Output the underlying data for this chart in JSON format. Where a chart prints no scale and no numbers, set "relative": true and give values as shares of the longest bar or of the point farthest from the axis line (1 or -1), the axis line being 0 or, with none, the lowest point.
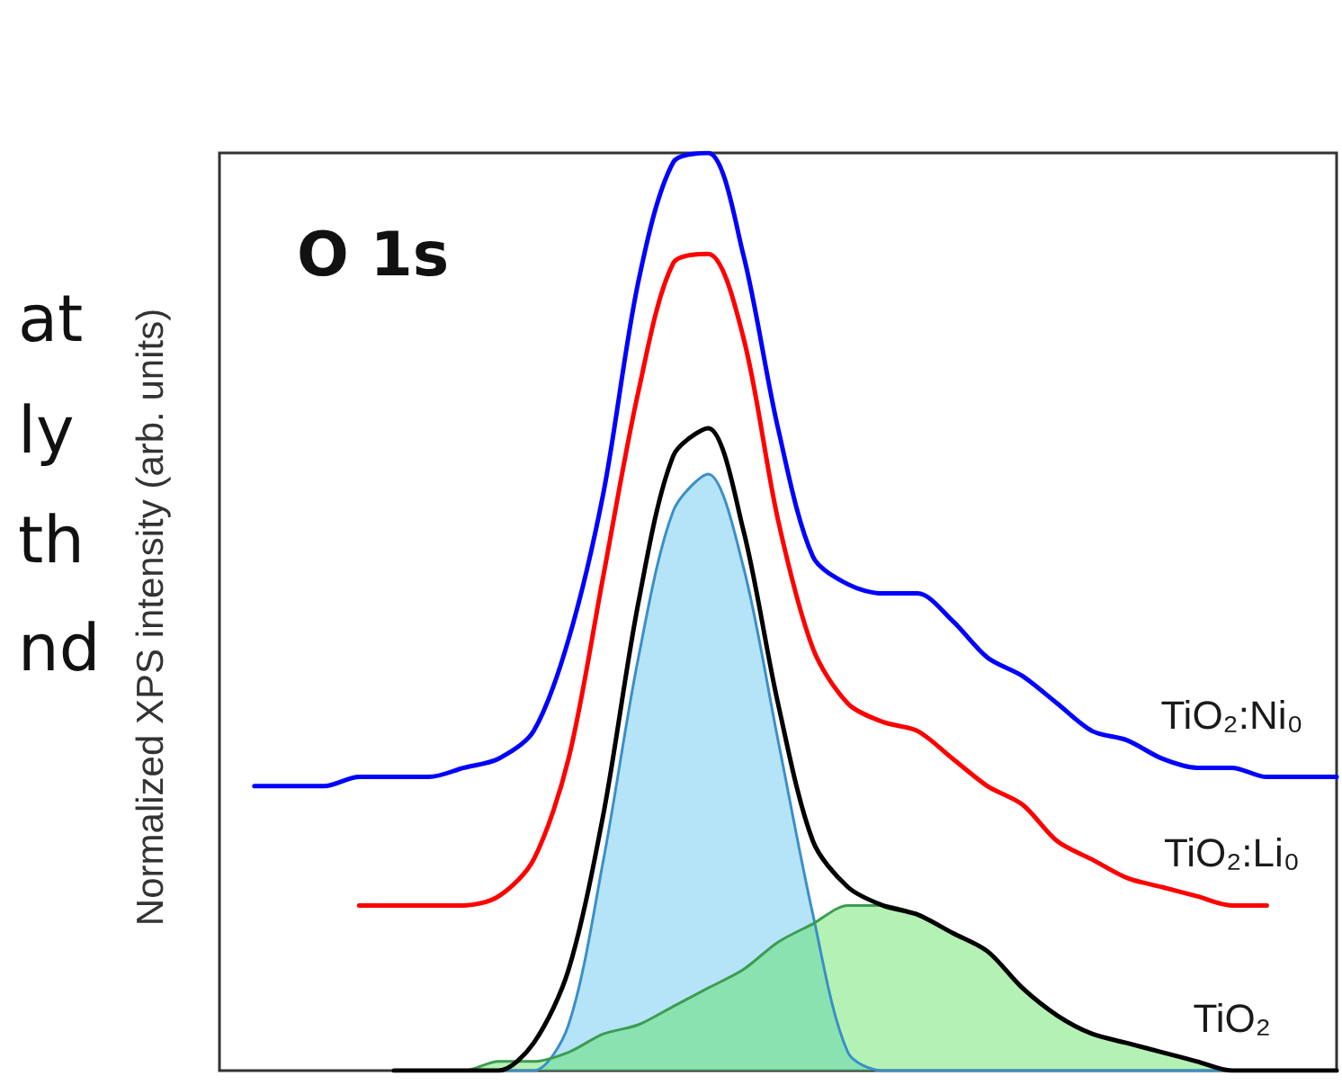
{
  "chart_data": {
    "type": "line",
    "relative": true,
    "ylabel": "Normalized XPS intensity (arb. units)",
    "annotations": [
      "O 1s",
      "at",
      "ly",
      "th",
      "nd"
    ],
    "categories": [
      null,
      null,
      null,
      null,
      null,
      null,
      null,
      null,
      null,
      null,
      null,
      null,
      null,
      null,
      null,
      null,
      null,
      null,
      null,
      null,
      null,
      null,
      null,
      null,
      null,
      null,
      null,
      null,
      null,
      null,
      null,
      null,
      null
    ],
    "series": [
      {
        "name": "TiO₂:Ni₀",
        "color": "#0000ff",
        "values": [
          null,
          0.31,
          0.31,
          0.31,
          0.32,
          0.32,
          0.32,
          0.33,
          0.34,
          0.37,
          0.47,
          0.63,
          0.86,
          0.99,
          1,
          0.89,
          0.7,
          0.56,
          0.53,
          0.52,
          0.52,
          0.49,
          0.45,
          0.43,
          0.4,
          0.37,
          0.36,
          0.34,
          0.33,
          0.33,
          0.32,
          0.32,
          0.32
        ]
      },
      {
        "name": "TiO₂:Li₀",
        "color": "#ff0000",
        "values": [
          null,
          null,
          null,
          null,
          0.18,
          0.18,
          0.18,
          0.18,
          0.19,
          0.23,
          0.34,
          0.54,
          0.74,
          0.88,
          0.89,
          0.8,
          0.6,
          0.46,
          0.4,
          0.38,
          0.37,
          0.34,
          0.31,
          0.29,
          0.25,
          0.23,
          0.21,
          0.2,
          0.19,
          0.18,
          0.18,
          null,
          null
        ]
      },
      {
        "type": "area",
        "color": "#3a8fc8",
        "values": [
          null,
          null,
          null,
          null,
          null,
          0,
          0,
          0,
          0,
          0,
          0.05,
          0.23,
          0.45,
          0.61,
          0.65,
          0.55,
          0.36,
          0.17,
          0.02,
          0,
          0,
          0,
          0,
          0,
          0,
          0,
          0,
          0,
          0,
          0,
          0,
          0,
          0
        ]
      },
      {
        "type": "area",
        "color": "#3c9c50",
        "values": [
          null,
          null,
          null,
          null,
          null,
          0,
          0,
          0,
          0.01,
          0.01,
          0.02,
          0.04,
          0.05,
          0.07,
          0.09,
          0.11,
          0.14,
          0.16,
          0.18,
          0.18,
          0.17,
          0.15,
          0.13,
          0.09,
          0.06,
          0.04,
          0.03,
          0.02,
          0.01,
          0,
          0,
          0,
          0
        ]
      },
      {
        "name": "TiO₂",
        "color": "#000000",
        "values": [
          null,
          null,
          null,
          null,
          null,
          0,
          0,
          0,
          0,
          0.03,
          0.11,
          0.28,
          0.51,
          0.67,
          0.7,
          0.59,
          0.4,
          0.25,
          0.2,
          0.18,
          0.17,
          0.15,
          0.13,
          0.09,
          0.06,
          0.04,
          0.03,
          0.02,
          0.01,
          0,
          0,
          0,
          0
        ]
      }
    ]
  }
}
